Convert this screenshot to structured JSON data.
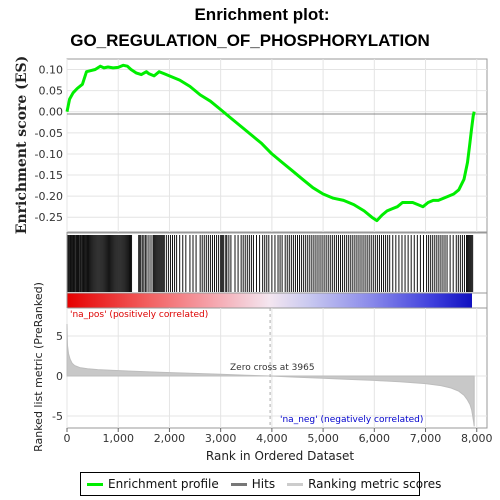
{
  "title_line1": "Enrichment plot:",
  "title_line2": "GO_REGULATION_OF_PHOSPHORYLATION",
  "legend": {
    "items": [
      {
        "label": "Enrichment profile",
        "color": "#00ee00"
      },
      {
        "label": "Hits",
        "color": "#777777"
      },
      {
        "label": "Ranking metric scores",
        "color": "#cccccc"
      }
    ]
  },
  "chart_data": [
    {
      "type": "line",
      "ylabel": "Enrichment score (ES)",
      "xlim": [
        0,
        8200
      ],
      "ylim": [
        -0.285,
        0.125
      ],
      "yticks": [
        "0.10",
        "0.05",
        "0.00",
        "-0.05",
        "-0.10",
        "-0.15",
        "-0.20",
        "-0.25"
      ],
      "ytick_values": [
        0.1,
        0.05,
        0.0,
        -0.05,
        -0.1,
        -0.15,
        -0.2,
        -0.25
      ],
      "grid": true,
      "line_color": "#00ee00",
      "series": [
        {
          "x": [
            0,
            50,
            120,
            200,
            300,
            380,
            450,
            550,
            650,
            720,
            800,
            900,
            1000,
            1100,
            1180,
            1250,
            1350,
            1450,
            1550,
            1600,
            1700,
            1800,
            1900,
            2000,
            2200,
            2400,
            2600,
            2800,
            3000,
            3200,
            3400,
            3600,
            3800,
            4000,
            4200,
            4400,
            4600,
            4800,
            5000,
            5200,
            5400,
            5600,
            5800,
            5950,
            6050,
            6150,
            6250,
            6350,
            6450,
            6550,
            6650,
            6750,
            6850,
            6950,
            7050,
            7150,
            7250,
            7350,
            7450,
            7550,
            7650,
            7750,
            7820,
            7860,
            7900,
            7930,
            7950
          ],
          "y": [
            0.0,
            0.03,
            0.045,
            0.055,
            0.065,
            0.095,
            0.097,
            0.1,
            0.108,
            0.104,
            0.106,
            0.104,
            0.105,
            0.11,
            0.108,
            0.1,
            0.092,
            0.088,
            0.095,
            0.09,
            0.085,
            0.095,
            0.09,
            0.085,
            0.075,
            0.06,
            0.04,
            0.025,
            0.005,
            -0.015,
            -0.035,
            -0.055,
            -0.075,
            -0.1,
            -0.12,
            -0.14,
            -0.16,
            -0.18,
            -0.195,
            -0.205,
            -0.21,
            -0.22,
            -0.235,
            -0.25,
            -0.258,
            -0.245,
            -0.235,
            -0.23,
            -0.225,
            -0.215,
            -0.215,
            -0.215,
            -0.22,
            -0.225,
            -0.215,
            -0.21,
            -0.21,
            -0.205,
            -0.2,
            -0.195,
            -0.185,
            -0.16,
            -0.12,
            -0.08,
            -0.04,
            -0.01,
            0.0
          ]
        }
      ]
    },
    {
      "type": "hits",
      "description_free": true,
      "x": [
        20,
        40,
        60,
        75,
        90,
        105,
        120,
        135,
        150,
        170,
        185,
        200,
        215,
        230,
        250,
        265,
        280,
        300,
        315,
        330,
        345,
        360,
        380,
        400,
        420,
        440,
        460,
        480,
        500,
        520,
        540,
        560,
        580,
        600,
        620,
        640,
        660,
        680,
        700,
        720,
        740,
        760,
        780,
        800,
        820,
        840,
        860,
        880,
        900,
        920,
        940,
        960,
        980,
        1000,
        1020,
        1040,
        1060,
        1080,
        1100,
        1120,
        1140,
        1160,
        1180,
        1200,
        1220,
        1240,
        1260,
        1400,
        1420,
        1440,
        1470,
        1500,
        1530,
        1560,
        1600,
        1640,
        1680,
        1700,
        1720,
        1740,
        1760,
        1780,
        1800,
        1820,
        1840,
        1860,
        1880,
        1900,
        1940,
        1980,
        2020,
        2060,
        2100,
        2140,
        2200,
        2260,
        2320,
        2400,
        2460,
        2520,
        2600,
        2640,
        2680,
        2720,
        2760,
        2800,
        2840,
        2880,
        2920,
        2960,
        3000,
        3020,
        3040,
        3060,
        3100,
        3120,
        3160,
        3200,
        3280,
        3340,
        3400,
        3440,
        3480,
        3520,
        3560,
        3600,
        3640,
        3700,
        3760,
        3820,
        3860,
        3900,
        3940,
        4000,
        4060,
        4120,
        4160,
        4200,
        4260,
        4300,
        4340,
        4380,
        4420,
        4460,
        4500,
        4540,
        4580,
        4620,
        4660,
        4700,
        4740,
        4780,
        4820,
        4860,
        4900,
        4940,
        4980,
        5020,
        5060,
        5100,
        5140,
        5180,
        5220,
        5260,
        5300,
        5340,
        5380,
        5420,
        5460,
        5500,
        5540,
        5580,
        5620,
        5660,
        5700,
        5740,
        5780,
        5820,
        5860,
        5900,
        5940,
        5980,
        6020,
        6060,
        6100,
        6140,
        6180,
        6220,
        6260,
        6300,
        6360,
        6420,
        6480,
        6540,
        6600,
        6660,
        6720,
        6780,
        6840,
        6900,
        6960,
        7020,
        7060,
        7100,
        7140,
        7180,
        7220,
        7260,
        7300,
        7340,
        7380,
        7420,
        7480,
        7540,
        7600,
        7640,
        7680,
        7720,
        7760,
        7800,
        7820,
        7840,
        7860,
        7880,
        7900,
        7920
      ]
    },
    {
      "type": "area",
      "ylabel": "Ranked list metric (PreRanked)",
      "xlabel": "Rank in Ordered Dataset",
      "xlim": [
        0,
        8200
      ],
      "ylim": [
        -6.5,
        8.5
      ],
      "yticks": [
        "5",
        "0",
        "-5"
      ],
      "ytick_values": [
        5,
        0,
        -5
      ],
      "xticks": [
        "0",
        "1,000",
        "2,000",
        "3,000",
        "4,000",
        "5,000",
        "6,000",
        "7,000",
        "8,000"
      ],
      "xtick_values": [
        0,
        1000,
        2000,
        3000,
        4000,
        5000,
        6000,
        7000,
        8000
      ],
      "grid": true,
      "x": [
        0,
        10,
        30,
        60,
        100,
        150,
        250,
        400,
        600,
        900,
        1300,
        1800,
        2400,
        3000,
        3500,
        3965,
        4500,
        5000,
        5500,
        6000,
        6500,
        7000,
        7300,
        7500,
        7650,
        7750,
        7820,
        7870,
        7900,
        7920,
        7940,
        7950
      ],
      "values": [
        6.5,
        3.8,
        2.8,
        2.1,
        1.6,
        1.3,
        1.05,
        0.9,
        0.8,
        0.7,
        0.6,
        0.48,
        0.35,
        0.22,
        0.1,
        0.0,
        -0.15,
        -0.28,
        -0.42,
        -0.55,
        -0.72,
        -0.95,
        -1.2,
        -1.5,
        -1.9,
        -2.4,
        -3.0,
        -3.6,
        -4.2,
        -5.0,
        -5.8,
        -6.3
      ],
      "annotations": [
        {
          "text": "'na_pos' (positively correlated)",
          "color": "#dd0000"
        },
        {
          "text": "Zero cross at 3965",
          "color": "#333333"
        },
        {
          "text": "'na_neg' (negatively correlated)",
          "color": "#0000cc"
        }
      ],
      "zero_cross": 3965
    }
  ]
}
